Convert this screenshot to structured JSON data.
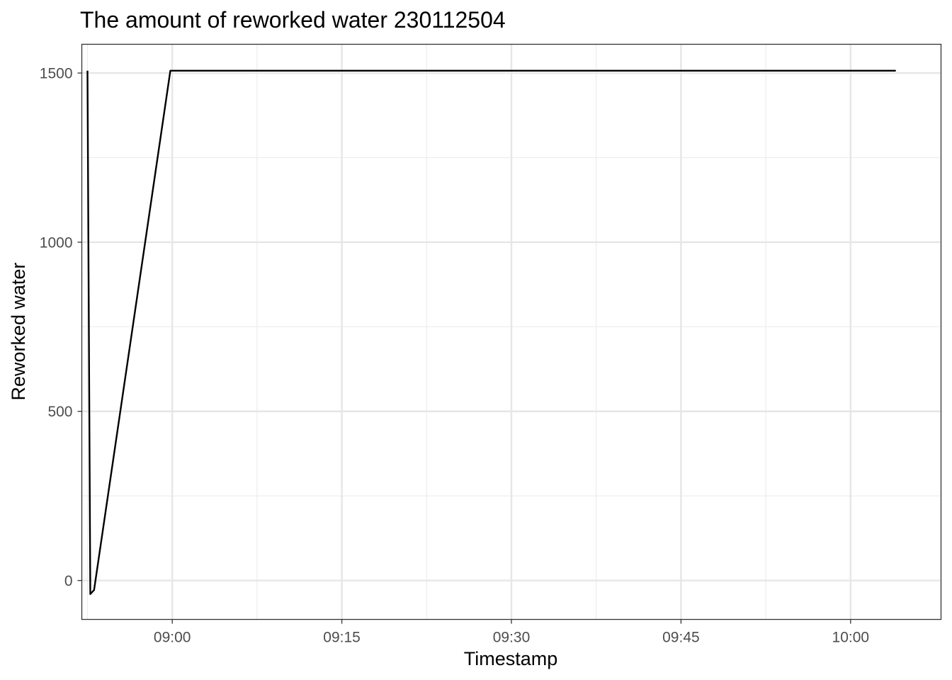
{
  "chart_data": {
    "type": "line",
    "title": "The amount of reworked water 230112504",
    "xlabel": "Timestamp",
    "ylabel": "Reworked water",
    "x_scale": "time",
    "x_range": [
      "08:52",
      "10:08"
    ],
    "y_range": [
      -115,
      1585
    ],
    "x_ticks": [
      "09:00",
      "09:15",
      "09:30",
      "09:45",
      "10:00"
    ],
    "x_minor_ticks": [
      "08:52:30",
      "09:07:30",
      "09:22:30",
      "09:37:30",
      "09:52:30"
    ],
    "y_ticks": [
      0,
      500,
      1000,
      1500
    ],
    "y_minor_ticks": [
      250,
      750,
      1250
    ],
    "grid": true,
    "legend": "none",
    "series": [
      {
        "color": "#000000",
        "points": [
          {
            "x": "08:52:30",
            "y": 1507
          },
          {
            "x": "08:52:45",
            "y": -40
          },
          {
            "x": "08:53:05",
            "y": -28
          },
          {
            "x": "08:59:50",
            "y": 1507
          },
          {
            "x": "10:04:00",
            "y": 1507
          }
        ]
      }
    ]
  }
}
